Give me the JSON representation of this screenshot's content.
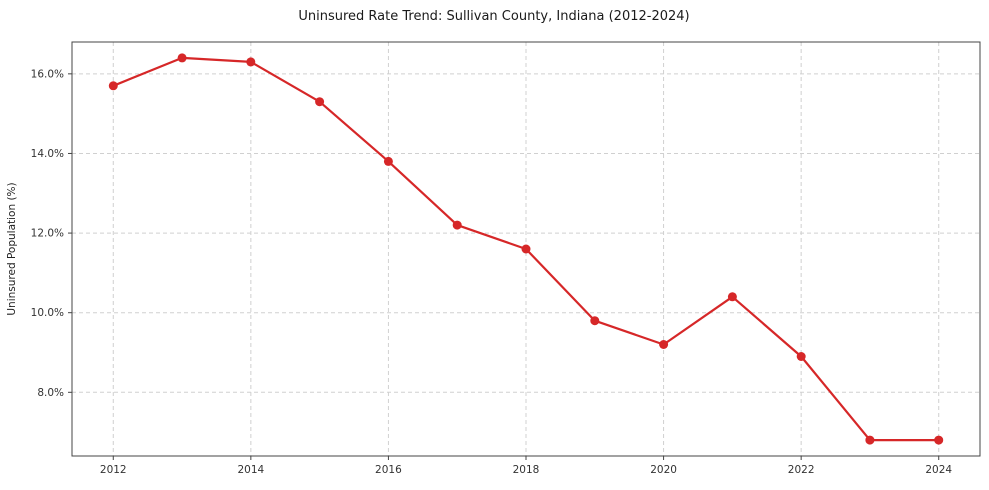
{
  "chart_data": {
    "type": "line",
    "title": "Uninsured Rate Trend: Sullivan County, Indiana (2012-2024)",
    "xlabel": "",
    "ylabel": "Uninsured Population (%)",
    "x": [
      2012,
      2013,
      2014,
      2015,
      2016,
      2017,
      2018,
      2019,
      2020,
      2021,
      2022,
      2023,
      2024
    ],
    "series": [
      {
        "name": "Uninsured Rate",
        "values": [
          15.7,
          16.4,
          16.3,
          15.3,
          13.8,
          12.2,
          11.6,
          9.8,
          9.2,
          10.4,
          8.9,
          6.8,
          6.8
        ]
      }
    ],
    "xticks": [
      2012,
      2014,
      2016,
      2018,
      2020,
      2022,
      2024
    ],
    "xtick_labels": [
      "2012",
      "2014",
      "2016",
      "2018",
      "2020",
      "2022",
      "2024"
    ],
    "yticks": [
      8,
      10,
      12,
      14,
      16
    ],
    "ytick_labels": [
      "8.0%",
      "10.0%",
      "12.0%",
      "14.0%",
      "16.0%"
    ],
    "xlim": [
      2011.4,
      2024.6
    ],
    "ylim": [
      6.4,
      16.8
    ],
    "grid": true,
    "grid_style": "dashed",
    "legend_position": "none",
    "colors": {
      "line": "#d62728",
      "marker": "#d62728",
      "grid": "#d0d0d0",
      "spine": "#444444",
      "background": "#ffffff"
    }
  }
}
